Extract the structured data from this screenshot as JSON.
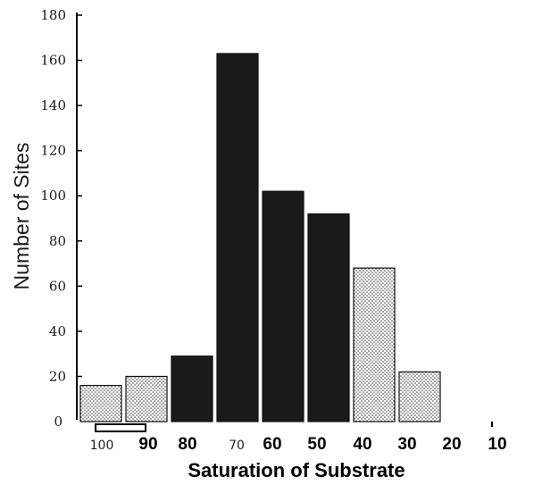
{
  "chart_data": {
    "type": "bar",
    "title": "",
    "xlabel": "Saturation of Substrate",
    "ylabel": "Number of Sites",
    "ylim": [
      0,
      180
    ],
    "yticks": [
      "180",
      "160",
      "140",
      "120",
      "100",
      "80",
      "60",
      "40",
      "20",
      "0"
    ],
    "xticks": [
      "100",
      "90",
      "80",
      "70",
      "60",
      "50",
      "40",
      "30",
      "20",
      "10"
    ],
    "categories": [
      "100",
      "90",
      "80",
      "70",
      "60",
      "50",
      "40",
      "30"
    ],
    "values": [
      16,
      20,
      29,
      163,
      102,
      92,
      68,
      22
    ],
    "fill_types": [
      "dotted",
      "dotted",
      "solid",
      "solid",
      "solid",
      "solid",
      "dotted",
      "dotted"
    ],
    "grid": false,
    "colors": {
      "solid": "#1a1a1a",
      "dotted_bg": "#ffffff",
      "dot": "#333333",
      "axis": "#000000"
    }
  }
}
